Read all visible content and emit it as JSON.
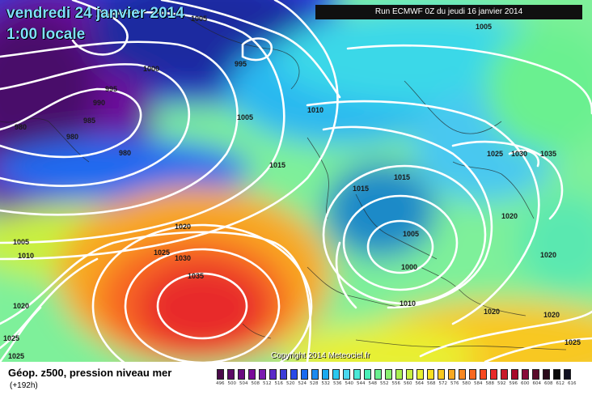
{
  "header": {
    "date": "vendredi 24 janvier 2014",
    "time": "1:00 locale",
    "run": "Run ECMWF 0Z du jeudi 16 janvier 2014"
  },
  "copyright": "Copyright 2014 Meteociel.fr",
  "footer": {
    "title": "Géop. z500, pression niveau mer",
    "subtitle": "(+192h)"
  },
  "isobar_labels": [
    "1005",
    "1000",
    "995",
    "995",
    "990",
    "985",
    "980",
    "980",
    "980",
    "1005",
    "1010",
    "1015",
    "1015",
    "1025",
    "1030",
    "1035",
    "1015",
    "1005",
    "1000",
    "1010",
    "1020",
    "1020",
    "1020",
    "1025",
    "1030",
    "1035",
    "1005",
    "1010",
    "1020",
    "1025",
    "1025",
    "1020",
    "1020",
    "1025",
    "1005"
  ],
  "scale": {
    "colors": [
      "#4a0a4a",
      "#5c0a66",
      "#6a0a80",
      "#7a0a99",
      "#7a1ab0",
      "#5a2ac8",
      "#3a3ad8",
      "#2a4ae8",
      "#1a6af0",
      "#1a8af0",
      "#1aaaf0",
      "#2ac8f0",
      "#4ad8f0",
      "#4ae8d8",
      "#4af0b8",
      "#6af090",
      "#8af070",
      "#aaf050",
      "#c8f040",
      "#e8f030",
      "#f8e020",
      "#f8c820",
      "#f8a820",
      "#f88820",
      "#f86820",
      "#f84820",
      "#e82a2a",
      "#c81a2a",
      "#a80a2a",
      "#880a3a",
      "#5a0a2a",
      "#2a0a1a",
      "#0a0a0a",
      "#101020"
    ],
    "labels": [
      "496",
      "500",
      "504",
      "508",
      "512",
      "516",
      "520",
      "524",
      "528",
      "532",
      "536",
      "540",
      "544",
      "548",
      "552",
      "556",
      "560",
      "564",
      "568",
      "572",
      "576",
      "580",
      "584",
      "588",
      "592",
      "596",
      "600",
      "604",
      "608",
      "612",
      "616"
    ]
  }
}
